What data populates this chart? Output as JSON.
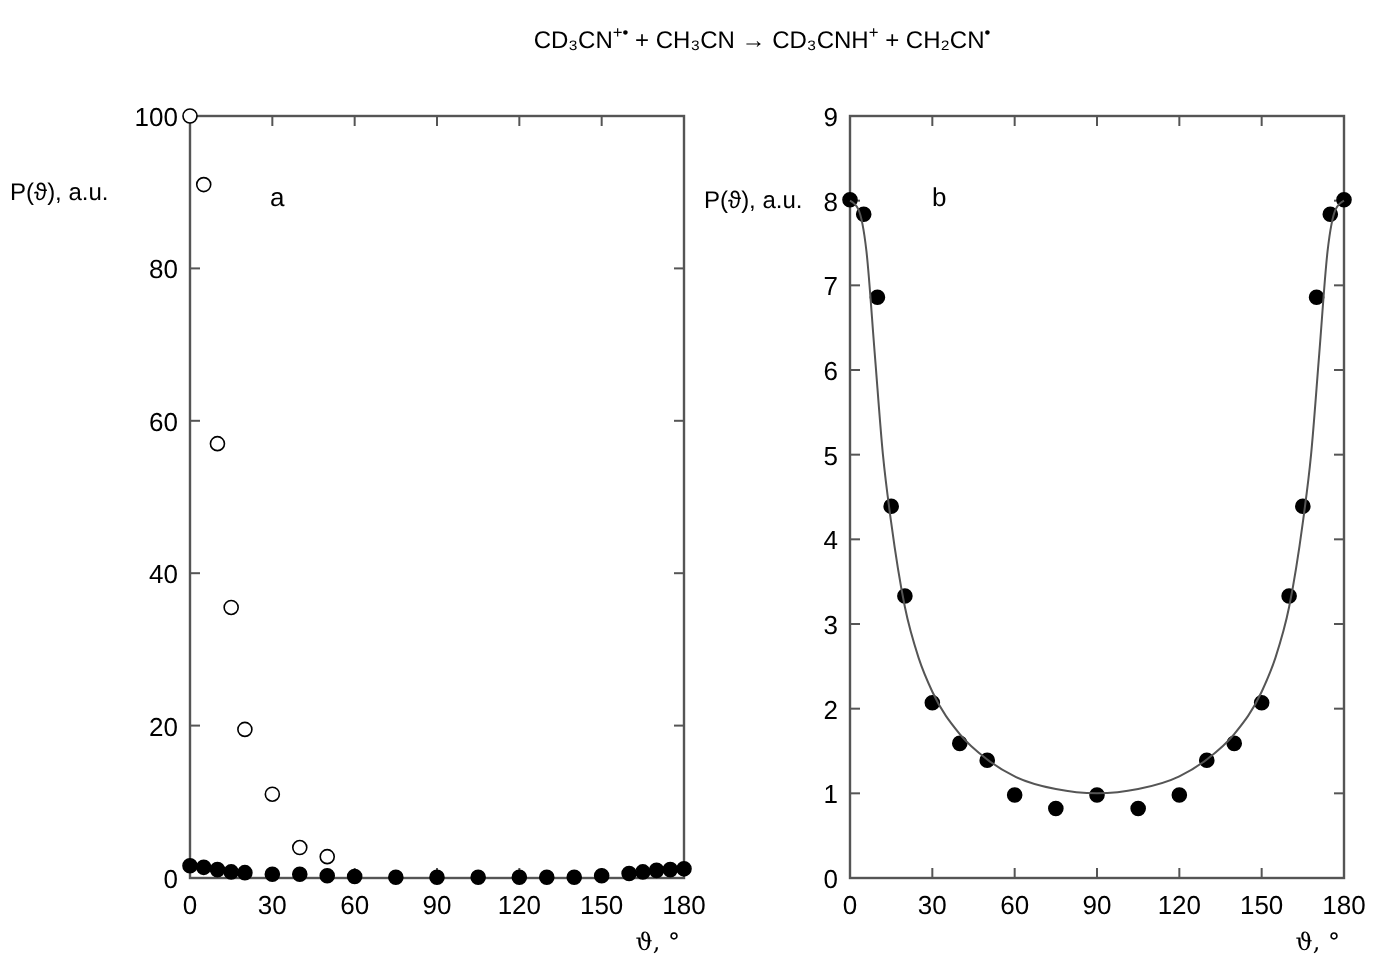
{
  "chart_data": [
    {
      "type": "scatter",
      "title": "CD₃CN$^{+•}$ + CH₃CN → CD₃CNH$^{+}$ + CH₂CN$^{•}$",
      "ylabel": "P(ϑ), a.u.",
      "xlabel": "ϑ, °",
      "annotations": [
        "a"
      ],
      "marker": "circle",
      "grid": false,
      "xlim": [
        0,
        180
      ],
      "xticks": [
        0,
        30,
        60,
        90,
        120,
        150,
        180
      ],
      "ylim": [
        0,
        100
      ],
      "yticks": [
        0,
        20,
        40,
        60,
        80,
        100
      ],
      "series": [
        {
          "color": "#ffffff",
          "x": [
            0,
            5,
            10,
            15,
            20,
            30,
            40,
            50
          ],
          "values": [
            100,
            91,
            57,
            35.5,
            19.5,
            11,
            4,
            2.8
          ]
        },
        {
          "color": "#000000",
          "x": [
            0,
            5,
            10,
            15,
            20,
            30,
            40,
            50,
            60,
            75,
            90,
            105,
            120,
            130,
            140,
            150,
            160,
            165,
            170,
            175,
            180
          ],
          "values": [
            1.6,
            1.4,
            1.1,
            0.8,
            0.7,
            0.5,
            0.5,
            0.3,
            0.2,
            0.1,
            0.1,
            0.1,
            0.1,
            0.1,
            0.1,
            0.3,
            0.6,
            0.8,
            1,
            1.1,
            1.2
          ]
        }
      ]
    },
    {
      "type": "scatter",
      "ylabel": "P(ϑ), a.u.",
      "xlabel": "ϑ, °",
      "annotations": [
        "b"
      ],
      "marker": "circle",
      "grid": false,
      "xlim": [
        0,
        180
      ],
      "xticks": [
        0,
        30,
        60,
        90,
        120,
        150,
        180
      ],
      "ylim": [
        0,
        9
      ],
      "yticks": [
        0,
        1,
        2,
        3,
        4,
        5,
        6,
        7,
        8,
        9
      ],
      "series": [
        {
          "color": "#000000",
          "x": [
            0,
            5,
            10,
            15,
            20,
            30,
            40,
            50,
            60,
            75,
            90,
            105,
            120,
            130,
            140,
            150,
            160,
            165,
            170,
            175,
            180
          ],
          "values": [
            8.01,
            7.84,
            6.86,
            4.39,
            3.33,
            2.07,
            1.59,
            1.39,
            0.98,
            0.82,
            0.98,
            0.82,
            0.98,
            1.39,
            1.59,
            2.07,
            3.33,
            4.39,
            6.86,
            7.84,
            8.01
          ]
        },
        {
          "type": "line",
          "color": "#555555",
          "marker": "none",
          "x": [
            0,
            3,
            6,
            9,
            12,
            15,
            20,
            25,
            30,
            40,
            50,
            60,
            75,
            90,
            105,
            120,
            130,
            140,
            150,
            155,
            160,
            165,
            168,
            171,
            174,
            177,
            180
          ],
          "values": [
            8,
            7.9,
            7.4,
            6.2,
            5,
            4.2,
            3.2,
            2.6,
            2.2,
            1.7,
            1.4,
            1.2,
            1.05,
            1,
            1.05,
            1.2,
            1.4,
            1.7,
            2.2,
            2.6,
            3.2,
            4.2,
            5,
            6.2,
            7.4,
            7.9,
            8
          ]
        }
      ]
    }
  ]
}
